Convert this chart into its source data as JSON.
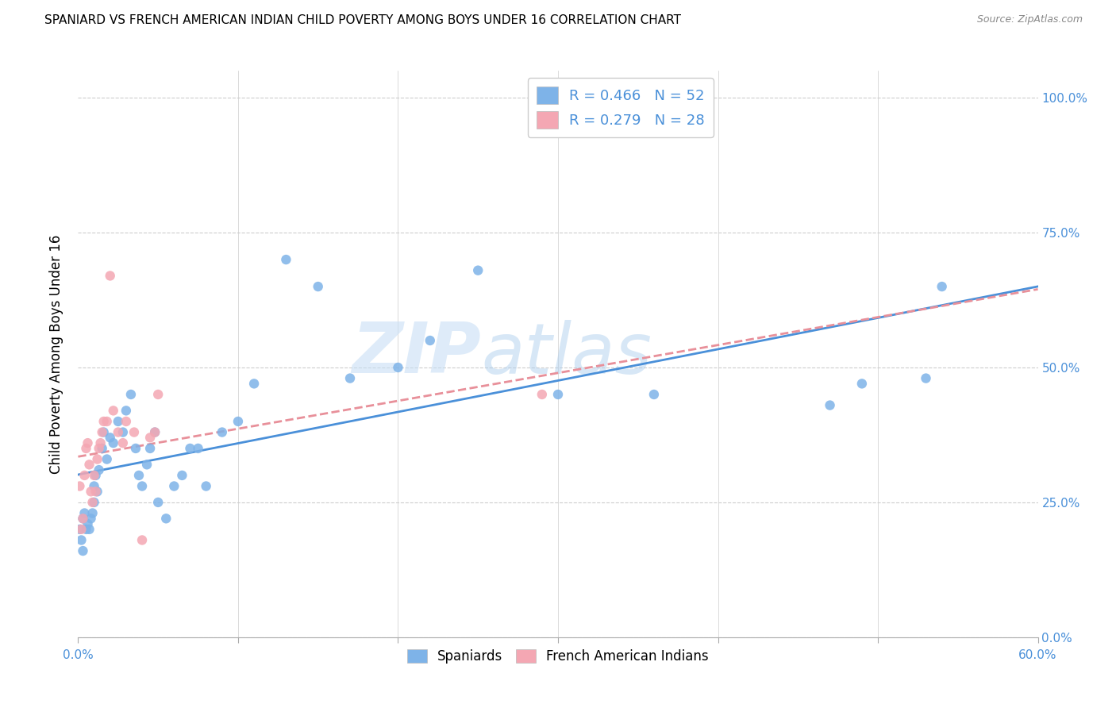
{
  "title": "SPANIARD VS FRENCH AMERICAN INDIAN CHILD POVERTY AMONG BOYS UNDER 16 CORRELATION CHART",
  "source": "Source: ZipAtlas.com",
  "ylabel": "Child Poverty Among Boys Under 16",
  "xlim": [
    0.0,
    0.6
  ],
  "ylim": [
    0.0,
    1.05
  ],
  "spaniard_color": "#7eb3e8",
  "french_color": "#f4a7b3",
  "legend_label_1": "R = 0.466   N = 52",
  "legend_label_2": "R = 0.279   N = 28",
  "watermark": "ZIPatlas",
  "spaniard_x": [
    0.001,
    0.002,
    0.003,
    0.003,
    0.004,
    0.005,
    0.006,
    0.007,
    0.008,
    0.009,
    0.01,
    0.01,
    0.011,
    0.012,
    0.013,
    0.015,
    0.016,
    0.018,
    0.02,
    0.022,
    0.025,
    0.028,
    0.03,
    0.033,
    0.036,
    0.038,
    0.04,
    0.043,
    0.045,
    0.048,
    0.05,
    0.055,
    0.06,
    0.065,
    0.07,
    0.075,
    0.08,
    0.09,
    0.1,
    0.11,
    0.13,
    0.15,
    0.17,
    0.2,
    0.22,
    0.25,
    0.3,
    0.36,
    0.49,
    0.54,
    0.47,
    0.53
  ],
  "spaniard_y": [
    0.2,
    0.18,
    0.22,
    0.16,
    0.23,
    0.2,
    0.21,
    0.2,
    0.22,
    0.23,
    0.25,
    0.28,
    0.3,
    0.27,
    0.31,
    0.35,
    0.38,
    0.33,
    0.37,
    0.36,
    0.4,
    0.38,
    0.42,
    0.45,
    0.35,
    0.3,
    0.28,
    0.32,
    0.35,
    0.38,
    0.25,
    0.22,
    0.28,
    0.3,
    0.35,
    0.35,
    0.28,
    0.38,
    0.4,
    0.47,
    0.7,
    0.65,
    0.48,
    0.5,
    0.55,
    0.68,
    0.45,
    0.45,
    0.47,
    0.65,
    0.43,
    0.48
  ],
  "french_x": [
    0.001,
    0.002,
    0.003,
    0.004,
    0.005,
    0.006,
    0.007,
    0.008,
    0.009,
    0.01,
    0.011,
    0.012,
    0.013,
    0.014,
    0.015,
    0.016,
    0.018,
    0.02,
    0.022,
    0.025,
    0.028,
    0.03,
    0.035,
    0.04,
    0.045,
    0.048,
    0.05,
    0.29
  ],
  "french_y": [
    0.28,
    0.2,
    0.22,
    0.3,
    0.35,
    0.36,
    0.32,
    0.27,
    0.25,
    0.3,
    0.27,
    0.33,
    0.35,
    0.36,
    0.38,
    0.4,
    0.4,
    0.67,
    0.42,
    0.38,
    0.36,
    0.4,
    0.38,
    0.18,
    0.37,
    0.38,
    0.45,
    0.45
  ]
}
